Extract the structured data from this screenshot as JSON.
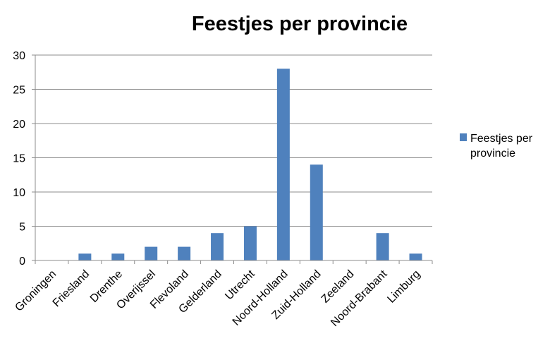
{
  "chart_data": {
    "type": "bar",
    "title": "Feestjes per provincie",
    "xlabel": "",
    "ylabel": "",
    "categories": [
      "Groningen",
      "Friesland",
      "Drenthe",
      "Overijssel",
      "Flevoland",
      "Gelderland",
      "Utrecht",
      "Noord-Holland",
      "Zuid-Holland",
      "Zeeland",
      "Noord-Brabant",
      "Limburg"
    ],
    "series": [
      {
        "name": "Feestjes per provincie",
        "values": [
          0,
          1,
          1,
          2,
          2,
          4,
          5,
          28,
          14,
          0,
          4,
          1
        ],
        "color": "#4F81BD"
      }
    ],
    "ylim": [
      0,
      30
    ],
    "yticks": [
      0,
      5,
      10,
      15,
      20,
      25,
      30
    ],
    "grid": true,
    "legend": "right",
    "colors": {
      "bar": "#4F81BD",
      "grid": "#8C8C8C",
      "axis": "#8C8C8C"
    }
  }
}
